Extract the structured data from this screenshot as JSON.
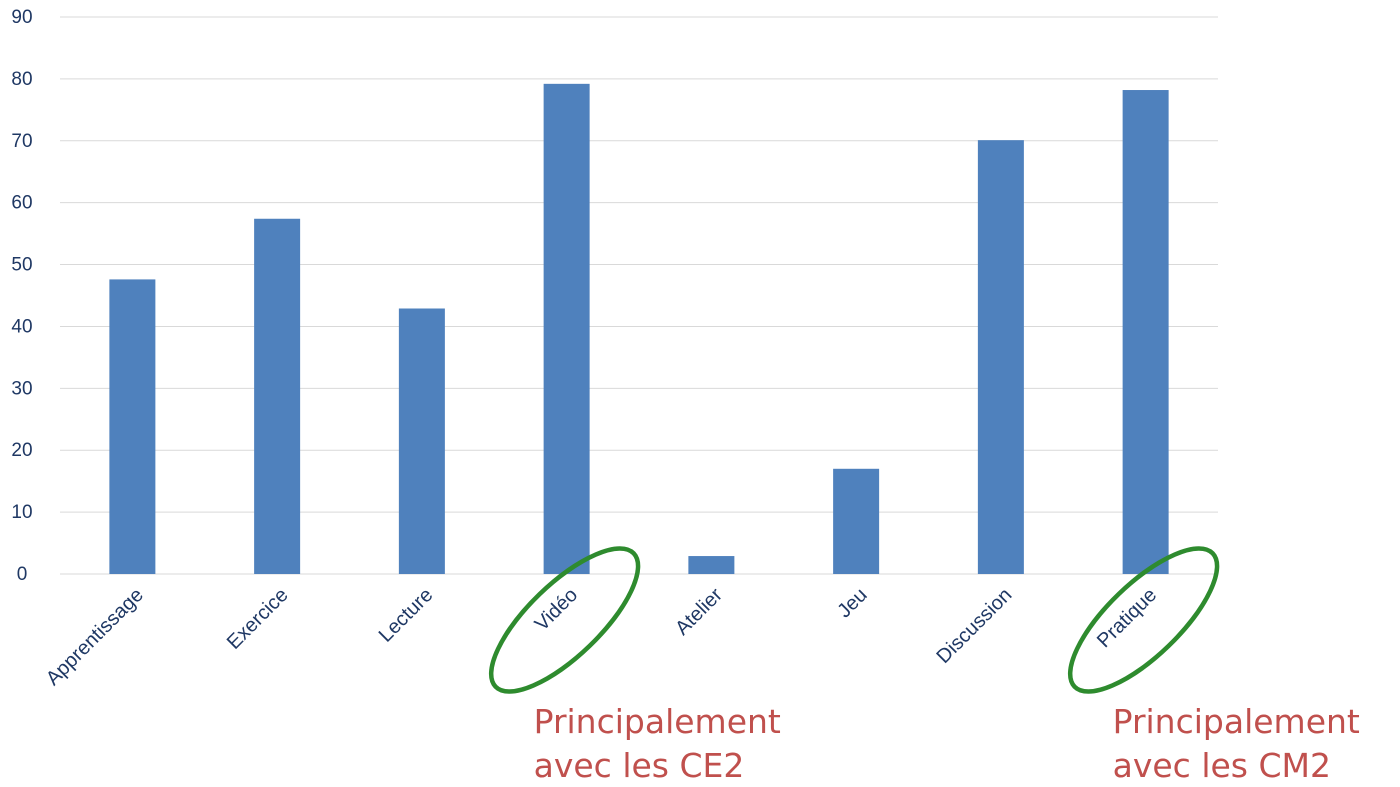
{
  "chart_data": {
    "type": "bar",
    "title": "",
    "xlabel": "",
    "ylabel": "",
    "categories": [
      "Apprentissage",
      "Exercice",
      "Lecture",
      "Vidéo",
      "Atelier",
      "Jeu",
      "Discussion",
      "Pratique"
    ],
    "values": [
      47.6,
      57.4,
      42.9,
      79.2,
      2.9,
      17.0,
      70.1,
      78.2
    ],
    "ylim": [
      0,
      90
    ],
    "yticks": [
      0,
      10,
      20,
      30,
      40,
      50,
      60,
      70,
      80,
      90
    ],
    "grid": true,
    "legend": "none",
    "colors": {
      "bar": "#4f81bd",
      "grid": "#d9d9d9",
      "tick_text": "#1f3864",
      "highlight": "#2e8b2e",
      "annotation_text": "#c0504d"
    },
    "annotations": [
      {
        "category": "Vidéo",
        "line1": "Principalement",
        "line2": "avec les CE2"
      },
      {
        "category": "Pratique",
        "line1": "Principalement",
        "line2": "avec les CM2"
      }
    ]
  }
}
